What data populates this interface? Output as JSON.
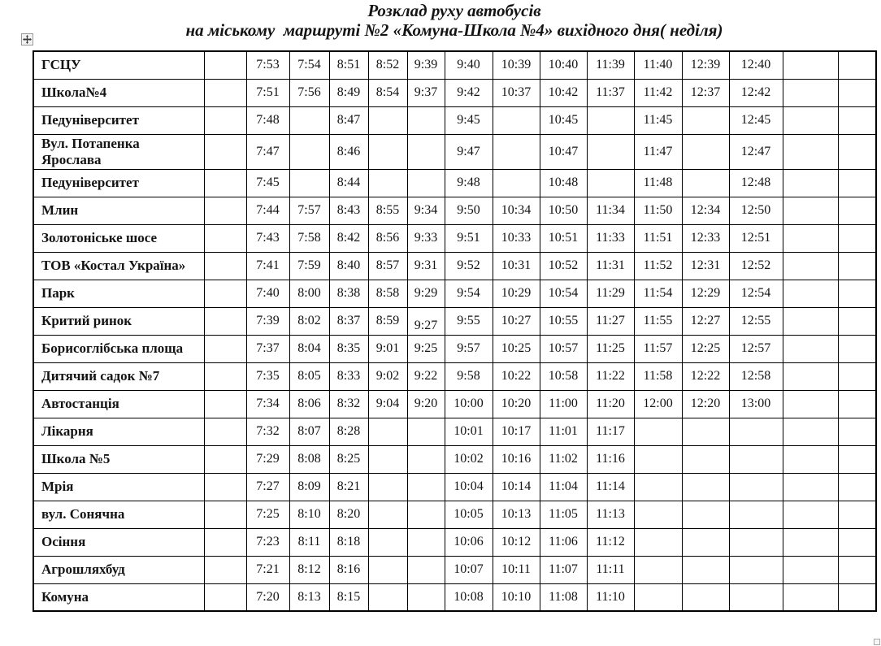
{
  "title": {
    "line1": "Розклад руху автобусів",
    "line2": "на міському  маршруті №2 «Комуна-Школа №4» вихідного дня( неділя)"
  },
  "icons": {
    "move_handle": "four-direction-arrows-icon",
    "resize_handle": "table-resize-square"
  },
  "table": {
    "station_column_header": "",
    "trailing_empty_columns": 2,
    "rows": [
      {
        "station": "ГСЦУ",
        "times": [
          "7:53",
          "7:54",
          "8:51",
          "8:52",
          "9:39",
          "9:40",
          "10:39",
          "10:40",
          "11:39",
          "11:40",
          "12:39",
          "12:40",
          "",
          ""
        ]
      },
      {
        "station": "Школа№4",
        "times": [
          "7:51",
          "7:56",
          "8:49",
          "8:54",
          "9:37",
          "9:42",
          "10:37",
          "10:42",
          "11:37",
          "11:42",
          "12:37",
          "12:42",
          "",
          ""
        ]
      },
      {
        "station": "Педуніверситет",
        "times": [
          "7:48",
          "",
          "8:47",
          "",
          "",
          "9:45",
          "",
          "10:45",
          "",
          "11:45",
          "",
          "12:45",
          "",
          ""
        ]
      },
      {
        "station": "Вул. Потапенка\nЯрослава",
        "times": [
          "7:47",
          "",
          "8:46",
          "",
          "",
          "9:47",
          "",
          "10:47",
          "",
          "11:47",
          "",
          "12:47",
          "",
          ""
        ]
      },
      {
        "station": "Педуніверситет",
        "times": [
          "7:45",
          "",
          "8:44",
          "",
          "",
          "9:48",
          "",
          "10:48",
          "",
          "11:48",
          "",
          "12:48",
          "",
          ""
        ]
      },
      {
        "station": "Млин",
        "times": [
          "7:44",
          "7:57",
          "8:43",
          "8:55",
          "9:34",
          "9:50",
          "10:34",
          "10:50",
          "11:34",
          "11:50",
          "12:34",
          "12:50",
          "",
          ""
        ]
      },
      {
        "station": "Золотоніське шосе",
        "times": [
          "7:43",
          "7:58",
          "8:42",
          "8:56",
          "9:33",
          "9:51",
          "10:33",
          "10:51",
          "11:33",
          "11:51",
          "12:33",
          "12:51",
          "",
          ""
        ]
      },
      {
        "station": "ТОВ «Костал Україна»",
        "times": [
          "7:41",
          "7:59",
          "8:40",
          "8:57",
          "9:31",
          "9:52",
          "10:31",
          "10:52",
          "11:31",
          "11:52",
          "12:31",
          "12:52",
          "",
          ""
        ]
      },
      {
        "station": "Парк",
        "times": [
          "7:40",
          "8:00",
          "8:38",
          "8:58",
          "9:29",
          "9:54",
          "10:29",
          "10:54",
          "11:29",
          "11:54",
          "12:29",
          "12:54",
          "",
          ""
        ]
      },
      {
        "station": "Критий ринок",
        "times": [
          "7:39",
          "8:02",
          "8:37",
          "8:59",
          "9:27",
          "9:55",
          "10:27",
          "10:55",
          "11:27",
          "11:55",
          "12:27",
          "12:55",
          "",
          ""
        ],
        "valign_bottom_cols": [
          4
        ]
      },
      {
        "station": "Борисоглібська площа",
        "times": [
          "7:37",
          "8:04",
          "8:35",
          "9:01",
          "9:25",
          "9:57",
          "10:25",
          "10:57",
          "11:25",
          "11:57",
          "12:25",
          "12:57",
          "",
          ""
        ]
      },
      {
        "station": "Дитячий садок №7",
        "times": [
          "7:35",
          "8:05",
          "8:33",
          "9:02",
          "9:22",
          "9:58",
          "10:22",
          "10:58",
          "11:22",
          "11:58",
          "12:22",
          "12:58",
          "",
          ""
        ]
      },
      {
        "station": "Автостанція",
        "times": [
          "7:34",
          "8:06",
          "8:32",
          "9:04",
          "9:20",
          "10:00",
          "10:20",
          "11:00",
          "11:20",
          "12:00",
          "12:20",
          "13:00",
          "",
          ""
        ]
      },
      {
        "station": "Лікарня",
        "times": [
          "7:32",
          "8:07",
          "8:28",
          "",
          "",
          "10:01",
          "10:17",
          "11:01",
          "11:17",
          "",
          "",
          "",
          "",
          ""
        ]
      },
      {
        "station": "Школа №5",
        "times": [
          "7:29",
          "8:08",
          "8:25",
          "",
          "",
          "10:02",
          "10:16",
          "11:02",
          "11:16",
          "",
          "",
          "",
          "",
          ""
        ]
      },
      {
        "station": "Мрія",
        "times": [
          "7:27",
          "8:09",
          "8:21",
          "",
          "",
          "10:04",
          "10:14",
          "11:04",
          "11:14",
          "",
          "",
          "",
          "",
          ""
        ]
      },
      {
        "station": "вул. Сонячна",
        "times": [
          "7:25",
          "8:10",
          "8:20",
          "",
          "",
          "10:05",
          "10:13",
          "11:05",
          "11:13",
          "",
          "",
          "",
          "",
          ""
        ]
      },
      {
        "station": "Осіння",
        "times": [
          "7:23",
          "8:11",
          "8:18",
          "",
          "",
          "10:06",
          "10:12",
          "11:06",
          "11:12",
          "",
          "",
          "",
          "",
          ""
        ]
      },
      {
        "station": "Агрошляхбуд",
        "times": [
          "7:21",
          "8:12",
          "8:16",
          "",
          "",
          "10:07",
          "10:11",
          "11:07",
          "11:11",
          "",
          "",
          "",
          "",
          ""
        ]
      },
      {
        "station": "Комуна",
        "times": [
          "7:20",
          "8:13",
          "8:15",
          "",
          "",
          "10:08",
          "10:10",
          "11:08",
          "11:10",
          "",
          "",
          "",
          "",
          ""
        ]
      }
    ]
  }
}
